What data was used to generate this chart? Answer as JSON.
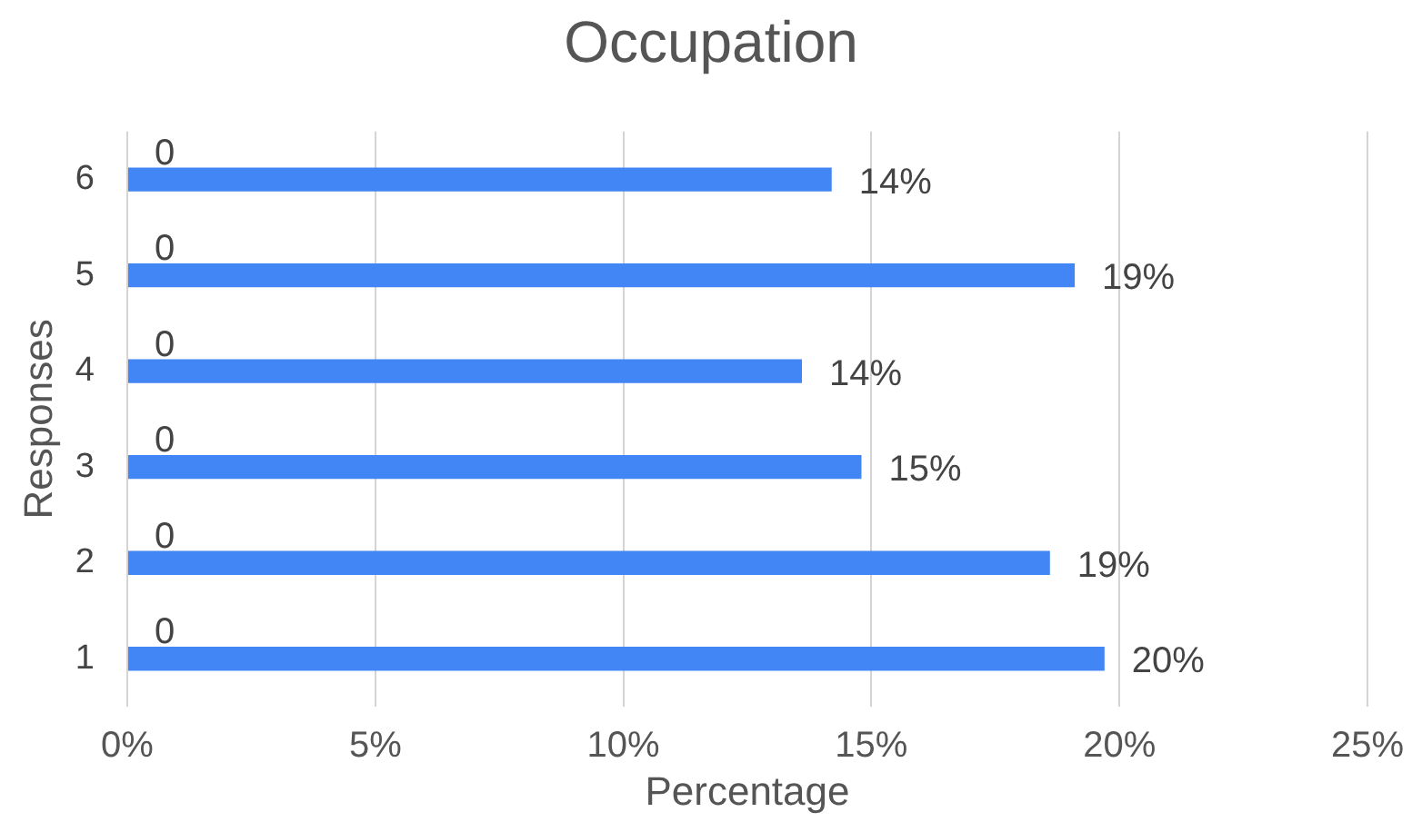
{
  "chart_data": {
    "type": "bar",
    "orientation": "horizontal",
    "title": "Occupation",
    "xlabel": "Percentage",
    "ylabel": "Responses",
    "categories": [
      "6",
      "5",
      "4",
      "3",
      "2",
      "1"
    ],
    "values": [
      14.2,
      19.1,
      13.6,
      14.8,
      18.6,
      19.7
    ],
    "color": "#4285f4",
    "value_labels": [
      "14%",
      "19%",
      "14%",
      "15%",
      "19%",
      "20%"
    ],
    "xlim": [
      0,
      25
    ],
    "xticks": [
      {
        "value": 0,
        "label": "0%"
      },
      {
        "value": 5,
        "label": "5%"
      },
      {
        "value": 10,
        "label": "10%"
      },
      {
        "value": 15,
        "label": "15%"
      },
      {
        "value": 20,
        "label": "20%"
      },
      {
        "value": 25,
        "label": "25%"
      }
    ],
    "grid": "x",
    "legend": false,
    "annotations": [
      "0",
      "0",
      "0",
      "0",
      "0",
      "0"
    ]
  }
}
